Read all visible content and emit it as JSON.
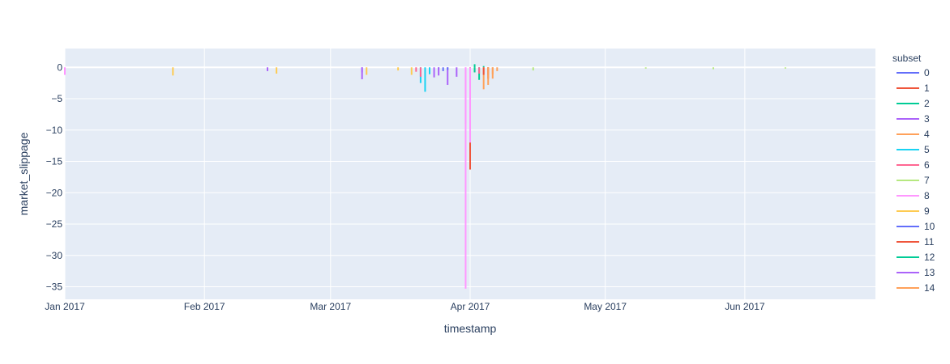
{
  "chart_data": {
    "type": "line",
    "xlabel": "timestamp",
    "ylabel": "market_slippage",
    "legend_title": "subset",
    "legend_position": "right",
    "grid": true,
    "xlim": [
      "2017-01-01",
      "2017-06-30"
    ],
    "ylim": [
      -37,
      3
    ],
    "x_ticks": [
      {
        "date": "2017-01-01",
        "label": "Jan 2017"
      },
      {
        "date": "2017-02-01",
        "label": "Feb 2017"
      },
      {
        "date": "2017-03-01",
        "label": "Mar 2017"
      },
      {
        "date": "2017-04-01",
        "label": "Apr 2017"
      },
      {
        "date": "2017-05-01",
        "label": "May 2017"
      },
      {
        "date": "2017-06-01",
        "label": "Jun 2017"
      }
    ],
    "y_ticks": [
      0,
      -5,
      -10,
      -15,
      -20,
      -25,
      -30,
      -35
    ],
    "series": [
      {
        "name": "0",
        "color": "#636efa",
        "x": [
          "2017-03-01",
          "2017-03-25",
          "2017-03-28"
        ],
        "y": [
          0,
          -0.4,
          0
        ]
      },
      {
        "name": "1",
        "color": "#EF553B",
        "x": [
          "2017-04-01",
          "2017-04-01",
          "2017-04-02"
        ],
        "y": [
          -14.8,
          -16.3,
          -0.8
        ]
      },
      {
        "name": "2",
        "color": "#00cc96",
        "x": [
          "2017-04-02",
          "2017-04-03",
          "2017-04-04"
        ],
        "y": [
          0.5,
          -2.0,
          0.2
        ]
      },
      {
        "name": "3",
        "color": "#ab63fa",
        "x": [
          "2017-03-08",
          "2017-03-08",
          "2017-03-24",
          "2017-03-27"
        ],
        "y": [
          -0.8,
          -1.9,
          -1.6,
          -2.8
        ]
      },
      {
        "name": "4",
        "color": "#FFA15A",
        "x": [
          "2017-04-04",
          "2017-04-05",
          "2017-04-06",
          "2017-04-07"
        ],
        "y": [
          -3.5,
          -1.2,
          -1.8,
          -0.6
        ]
      },
      {
        "name": "5",
        "color": "#19d3f3",
        "x": [
          "2017-03-21",
          "2017-03-22",
          "2017-03-23"
        ],
        "y": [
          -2.5,
          -3.9,
          -1.1
        ]
      },
      {
        "name": "6",
        "color": "#FF6692",
        "x": [
          "2017-03-20",
          "2017-03-21",
          "2017-04-03"
        ],
        "y": [
          -0.7,
          -1.5,
          -1.0
        ]
      },
      {
        "name": "7",
        "color": "#B6E880",
        "x": [
          "2017-04-15",
          "2017-05-10",
          "2017-05-25",
          "2017-06-10"
        ],
        "y": [
          -0.5,
          -0.2,
          -0.3,
          -0.2
        ]
      },
      {
        "name": "8",
        "color": "#FF97FF",
        "x": [
          "2017-01-01",
          "2017-03-31",
          "2017-03-31",
          "2017-04-01"
        ],
        "y": [
          -1.2,
          -9.0,
          -35.3,
          -12.0
        ]
      },
      {
        "name": "9",
        "color": "#FECB52",
        "x": [
          "2017-01-25",
          "2017-02-17",
          "2017-03-09",
          "2017-03-16",
          "2017-03-19"
        ],
        "y": [
          -1.3,
          -1.0,
          -1.2,
          -0.5,
          -1.2
        ]
      },
      {
        "name": "10",
        "color": "#636efa",
        "x": [
          "2017-03-26",
          "2017-03-27"
        ],
        "y": [
          -0.6,
          -0.4
        ]
      },
      {
        "name": "11",
        "color": "#EF553B",
        "x": [
          "2017-04-04",
          "2017-04-05"
        ],
        "y": [
          -1.2,
          -1.8
        ]
      },
      {
        "name": "12",
        "color": "#00cc96",
        "x": [
          "2017-04-02"
        ],
        "y": [
          -0.8
        ]
      },
      {
        "name": "13",
        "color": "#ab63fa",
        "x": [
          "2017-02-15",
          "2017-03-25",
          "2017-03-29"
        ],
        "y": [
          -0.6,
          -1.3,
          -1.5
        ]
      },
      {
        "name": "14",
        "color": "#FFA15A",
        "x": [
          "2017-04-05",
          "2017-04-06"
        ],
        "y": [
          -2.8,
          -1.1
        ]
      }
    ]
  }
}
